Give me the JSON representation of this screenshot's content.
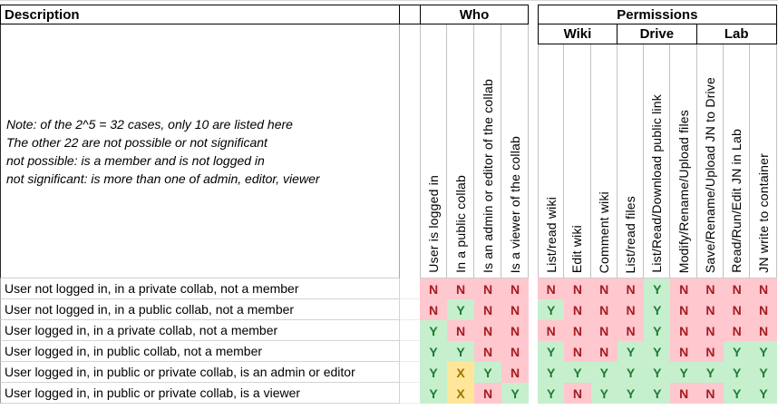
{
  "sheet": {
    "headers": {
      "description": "Description",
      "who": "Who",
      "permissions": "Permissions"
    },
    "permission_groups": {
      "wiki": "Wiki",
      "drive": "Drive",
      "lab": "Lab"
    },
    "note_lines": [
      "Note: of the 2^5 = 32 cases, only 10 are listed here",
      "The other 22 are not possible or not significant",
      "not possible: is a member and is not logged in",
      "not significant: is more than one of admin, editor, viewer"
    ],
    "who_columns": [
      "User is logged in",
      "In a public collab",
      "Is an admin or editor of the collab",
      "Is a viewer of the collab"
    ],
    "permission_columns": [
      "List/read wiki",
      "Edit wiki",
      "Comment wiki",
      "List/read files",
      "List/Read/Download public link",
      "Modify/Rename/Upload files",
      "Save/Rename/Upload JN to Drive",
      "Read/Run/Edit JN in Lab",
      "JN write to container"
    ],
    "rows": [
      {
        "description": "User not logged in, in a private collab, not a member",
        "who": [
          "N",
          "N",
          "N",
          "N"
        ],
        "permissions": [
          "N",
          "N",
          "N",
          "N",
          "Y",
          "N",
          "N",
          "N",
          "N"
        ]
      },
      {
        "description": "User not logged in, in a public collab, not a member",
        "who": [
          "N",
          "Y",
          "N",
          "N"
        ],
        "permissions": [
          "Y",
          "N",
          "N",
          "N",
          "Y",
          "N",
          "N",
          "N",
          "N"
        ]
      },
      {
        "description": "User logged in, in a private collab, not a member",
        "who": [
          "Y",
          "N",
          "N",
          "N"
        ],
        "permissions": [
          "N",
          "N",
          "N",
          "N",
          "Y",
          "N",
          "N",
          "N",
          "N"
        ]
      },
      {
        "description": "User logged in, in public collab, not a member",
        "who": [
          "Y",
          "Y",
          "N",
          "N"
        ],
        "permissions": [
          "Y",
          "N",
          "N",
          "Y",
          "Y",
          "N",
          "N",
          "Y",
          "Y"
        ]
      },
      {
        "description": "User logged in, in public or private collab, is an admin or editor",
        "who": [
          "Y",
          "X",
          "Y",
          "N"
        ],
        "permissions": [
          "Y",
          "Y",
          "Y",
          "Y",
          "Y",
          "Y",
          "Y",
          "Y",
          "Y"
        ]
      },
      {
        "description": "User logged in, in public or private collab, is a viewer",
        "who": [
          "Y",
          "X",
          "N",
          "Y"
        ],
        "permissions": [
          "Y",
          "N",
          "Y",
          "Y",
          "Y",
          "N",
          "N",
          "Y",
          "Y"
        ]
      }
    ],
    "value_styles": {
      "Y": {
        "bg": "#C6EFCE",
        "text": "#1F7B33"
      },
      "N": {
        "bg": "#FFC7CE",
        "text": "#A61B22"
      },
      "X": {
        "bg": "#FFE699",
        "text": "#9C7600"
      }
    }
  }
}
